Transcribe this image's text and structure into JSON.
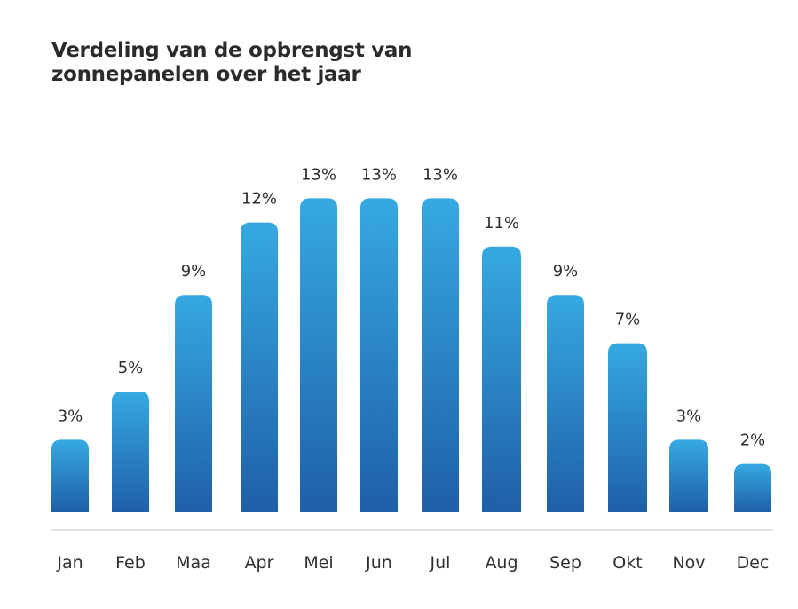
{
  "title_line1": "Verdeling van de opbrengst van",
  "title_line2": "zonnepanelen over het jaar",
  "chart_data": {
    "type": "bar",
    "title": "Verdeling van de opbrengst van zonnepanelen over het jaar",
    "categories": [
      "Jan",
      "Feb",
      "Maa",
      "Apr",
      "Mei",
      "Jun",
      "Jul",
      "Aug",
      "Sep",
      "Okt",
      "Nov",
      "Dec"
    ],
    "values": [
      3,
      5,
      9,
      12,
      13,
      13,
      13,
      11,
      9,
      7,
      3,
      2
    ],
    "labels": [
      "3%",
      "5%",
      "9%",
      "12%",
      "13%",
      "13%",
      "13%",
      "11%",
      "9%",
      "7%",
      "3%",
      "2%"
    ],
    "unit": "%",
    "xlabel": "",
    "ylabel": "",
    "ylim": [
      0,
      13
    ],
    "grid": false,
    "colors": {
      "bar_top": "#36a9e1",
      "bar_bottom": "#1f5fa8",
      "baseline": "#e3e3e3"
    }
  }
}
